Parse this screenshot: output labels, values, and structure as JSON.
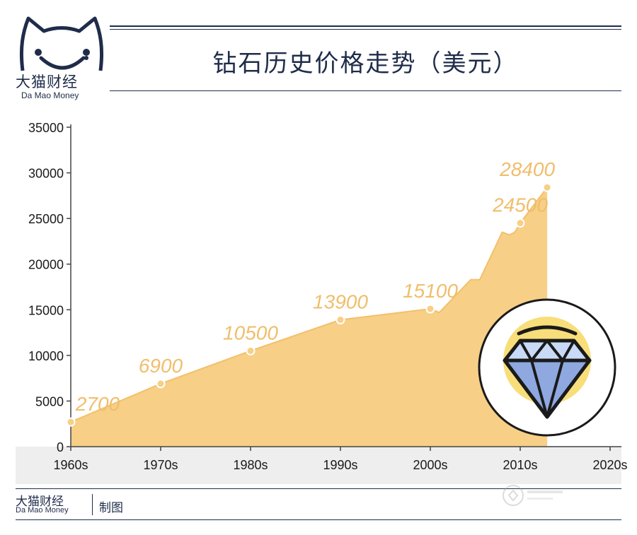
{
  "header": {
    "title": "钻石历史价格走势（美元）",
    "brand_zh": "大猫财经",
    "brand_en": "Da Mao Money"
  },
  "footer": {
    "brand_zh": "大猫财经",
    "brand_en": "Da Mao Money",
    "made_by": "制图"
  },
  "colors": {
    "area": "#f7cf86",
    "line": "#f2c06c",
    "label": "#f0be6c",
    "band": "#eeeeee",
    "navy": "#1f2c4a"
  },
  "chart_data": {
    "type": "area",
    "title": "钻石历史价格走势（美元）",
    "ylim": [
      0,
      35000
    ],
    "y_ticks": [
      "0",
      "5000",
      "10000",
      "15000",
      "20000",
      "25000",
      "30000",
      "35000"
    ],
    "x_ticks": [
      "1960s",
      "1970s",
      "1980s",
      "1990s",
      "2000s",
      "2010s",
      "2020s"
    ],
    "x_tick_years": [
      1960,
      1970,
      1980,
      1990,
      2000,
      2010,
      2020
    ],
    "xlim": [
      1960,
      2020
    ],
    "labeled_points": [
      {
        "year": 1960,
        "value": 2700,
        "label": "2700"
      },
      {
        "year": 1970,
        "value": 6900,
        "label": "6900"
      },
      {
        "year": 1980,
        "value": 10500,
        "label": "10500"
      },
      {
        "year": 1990,
        "value": 13900,
        "label": "13900"
      },
      {
        "year": 2000,
        "value": 15100,
        "label": "15100"
      },
      {
        "year": 2010,
        "value": 24500,
        "label": "24500"
      },
      {
        "year": 2013,
        "value": 28400,
        "label": "28400"
      }
    ],
    "series": [
      {
        "x": [
          1960,
          1970,
          1980,
          1990,
          2000,
          2001,
          2004.5,
          2005.5,
          2008,
          2008.8,
          2009.4,
          2010,
          2013
        ],
        "values": [
          2700,
          6900,
          10500,
          13900,
          15100,
          14700,
          18300,
          18300,
          23500,
          23200,
          23500,
          24500,
          28400
        ]
      }
    ]
  }
}
